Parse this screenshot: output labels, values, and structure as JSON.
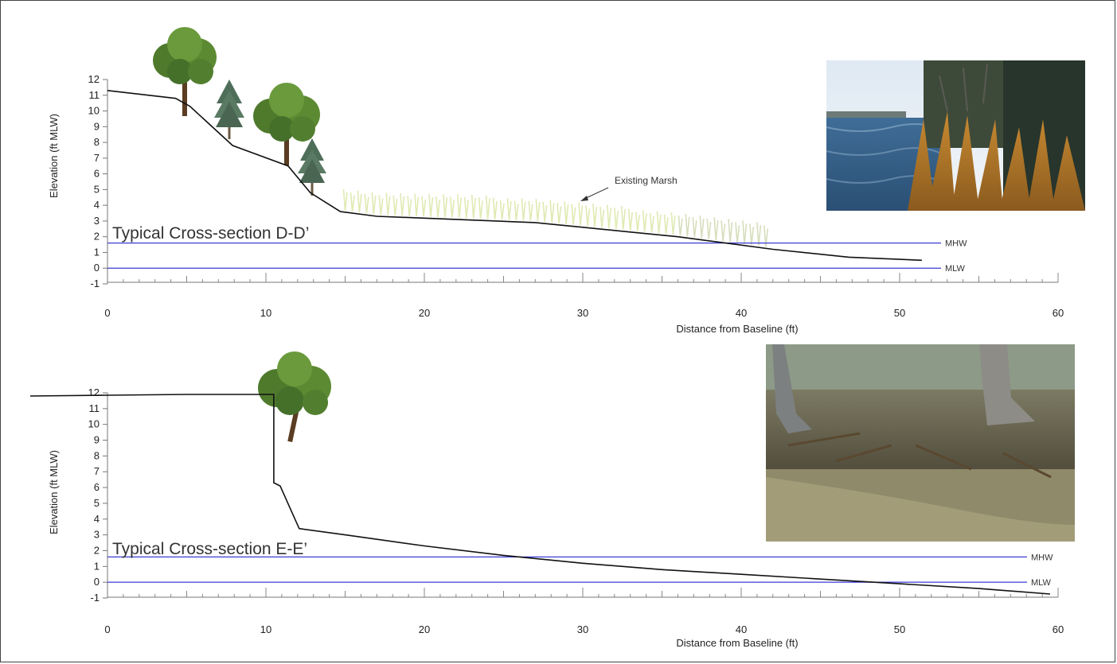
{
  "chart_data": [
    {
      "type": "line",
      "title": "Typical Cross-section D-D’",
      "xlabel": "Distance from Baseline (ft)",
      "ylabel": "Elevation (ft MLW)",
      "xlim": [
        0,
        60
      ],
      "ylim": [
        -1,
        12
      ],
      "x_ticks": [
        0,
        10,
        20,
        30,
        40,
        50,
        60
      ],
      "y_ticks": [
        -1,
        0,
        1,
        2,
        3,
        4,
        5,
        6,
        7,
        8,
        9,
        10,
        11,
        12
      ],
      "grid": false,
      "series": [
        {
          "x": [
            0,
            4.3,
            5.2,
            7.9,
            11.4,
            12.8,
            14.7,
            17,
            22,
            27,
            30,
            33,
            36,
            39,
            42,
            46.8,
            51.4
          ],
          "y": [
            11.3,
            10.8,
            10.3,
            7.8,
            6.5,
            4.8,
            3.6,
            3.3,
            3.1,
            2.9,
            2.6,
            2.3,
            2.0,
            1.6,
            1.2,
            0.7,
            0.5
          ]
        }
      ],
      "reference_lines": [
        {
          "label": "MHW",
          "y": 1.6
        },
        {
          "label": "MLW",
          "y": 0
        }
      ],
      "annotations": [
        {
          "text": "Existing Marsh"
        }
      ]
    },
    {
      "type": "line",
      "title": "Typical Cross-section E-E’",
      "xlabel": "Distance from Baseline (ft)",
      "ylabel": "Elevation (ft MLW)",
      "xlim": [
        0,
        60
      ],
      "ylim": [
        -1,
        12
      ],
      "x_ticks": [
        0,
        10,
        20,
        30,
        40,
        50,
        60
      ],
      "y_ticks": [
        -1,
        0,
        1,
        2,
        3,
        4,
        5,
        6,
        7,
        8,
        9,
        10,
        11,
        12
      ],
      "grid": false,
      "series": [
        {
          "x": [
            -5,
            0,
            5,
            10.5,
            10.5,
            10.5,
            10.9,
            12.1,
            15,
            20,
            25,
            30,
            35,
            40,
            45,
            50,
            55,
            59.5
          ],
          "y": [
            11.8,
            11.85,
            11.9,
            11.9,
            11.5,
            6.3,
            6.1,
            3.4,
            3.0,
            2.3,
            1.7,
            1.2,
            0.8,
            0.5,
            0.2,
            -0.1,
            -0.4,
            -0.75
          ]
        }
      ],
      "reference_lines": [
        {
          "label": "MHW",
          "y": 1.6
        },
        {
          "label": "MLW",
          "y": 0
        }
      ]
    }
  ]
}
